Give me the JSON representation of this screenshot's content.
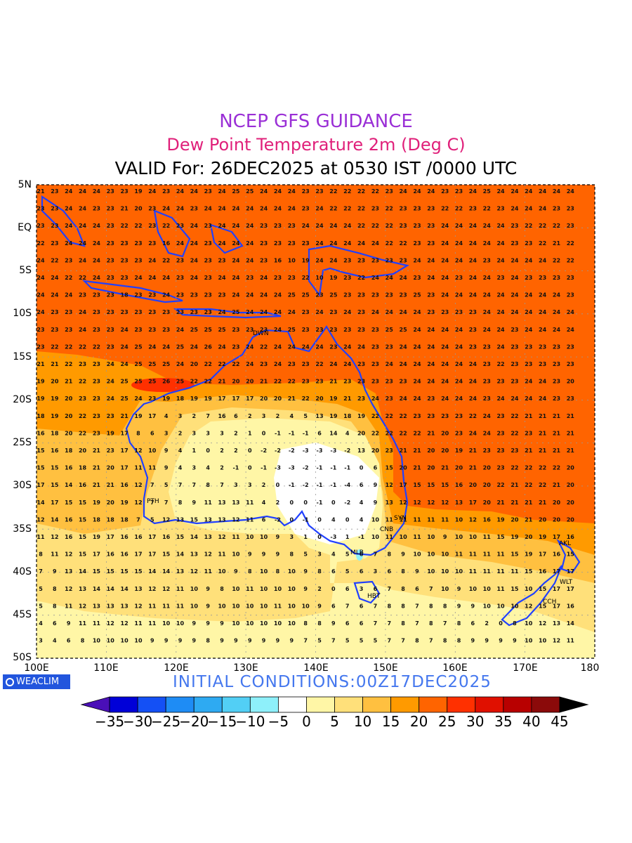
{
  "titles": {
    "line1": "NCEP GFS GUIDANCE",
    "line2": "Dew Point Temperature 2m (Deg C)",
    "line3": "VALID For: 26DEC2025 at 0530 IST /0000 UTC",
    "line1_color": "#9a2fd6",
    "line2_color": "#e0207a"
  },
  "axes": {
    "lat_labels": [
      "5N",
      "EQ",
      "5S",
      "10S",
      "15S",
      "20S",
      "25S",
      "30S",
      "35S",
      "40S",
      "45S",
      "50S"
    ],
    "lon_labels": [
      "100E",
      "110E",
      "120E",
      "130E",
      "140E",
      "150E",
      "160E",
      "170E",
      "180"
    ],
    "lat_range": [
      5,
      -50
    ],
    "lon_range": [
      100,
      180
    ]
  },
  "footer": {
    "initial_conditions": "INITIAL  CONDITIONS:00Z17DEC2025",
    "logo_text": "WEACLIM"
  },
  "colorbar": {
    "labels": [
      "-35",
      "-30",
      "-25",
      "-20",
      "-15",
      "-10",
      "-5",
      "0",
      "5",
      "10",
      "15",
      "20",
      "25",
      "30",
      "35",
      "40",
      "45"
    ],
    "colors": [
      "#4a0fb8",
      "#0000d8",
      "#1450f5",
      "#1e8cf5",
      "#2eaaf2",
      "#52cff5",
      "#8ef0fa",
      "#ffffff",
      "#fff6a6",
      "#ffe07a",
      "#ffc040",
      "#ff9a00",
      "#ff6400",
      "#ff3000",
      "#e01000",
      "#b80000",
      "#8b0a0a",
      "#000000"
    ]
  },
  "cities": [
    "PTH",
    "DWN",
    "SYN",
    "CNB",
    "MLB",
    "HBT",
    "AKL",
    "WLT",
    "CCH"
  ],
  "map_values": {
    "rows": [
      [
        21,
        23,
        24,
        24,
        24,
        23,
        23,
        19,
        24,
        23,
        24,
        24,
        23,
        24,
        25,
        25,
        24,
        24,
        24,
        23,
        23,
        22,
        22,
        22,
        22,
        23,
        24,
        24,
        24,
        23,
        23,
        24,
        25,
        24,
        24,
        24,
        24,
        24,
        24
      ],
      [
        23,
        23,
        24,
        24,
        23,
        23,
        21,
        20,
        23,
        24,
        24,
        23,
        24,
        24,
        24,
        24,
        24,
        24,
        24,
        23,
        24,
        22,
        22,
        22,
        23,
        22,
        23,
        23,
        23,
        22,
        22,
        23,
        22,
        23,
        24,
        24,
        24,
        23,
        23
      ],
      [
        23,
        23,
        24,
        24,
        24,
        23,
        22,
        22,
        23,
        22,
        23,
        24,
        23,
        24,
        24,
        24,
        23,
        23,
        23,
        24,
        24,
        24,
        24,
        22,
        22,
        22,
        23,
        23,
        23,
        24,
        24,
        24,
        24,
        24,
        23,
        22,
        22,
        22,
        23
      ],
      [
        22,
        23,
        24,
        24,
        24,
        23,
        23,
        23,
        23,
        16,
        24,
        24,
        23,
        24,
        24,
        24,
        23,
        23,
        23,
        23,
        24,
        24,
        24,
        24,
        24,
        22,
        22,
        23,
        23,
        24,
        24,
        24,
        24,
        24,
        23,
        23,
        22,
        21,
        22
      ],
      [
        24,
        22,
        23,
        24,
        24,
        23,
        23,
        23,
        24,
        22,
        23,
        24,
        23,
        23,
        24,
        24,
        23,
        16,
        10,
        19,
        24,
        24,
        23,
        23,
        23,
        23,
        23,
        24,
        24,
        24,
        24,
        24,
        23,
        24,
        24,
        24,
        24,
        22,
        22
      ],
      [
        24,
        24,
        22,
        22,
        24,
        23,
        23,
        24,
        24,
        24,
        23,
        24,
        23,
        24,
        24,
        23,
        24,
        23,
        23,
        22,
        10,
        19,
        23,
        22,
        24,
        24,
        24,
        23,
        24,
        24,
        23,
        24,
        24,
        23,
        24,
        23,
        23,
        23,
        23
      ],
      [
        24,
        24,
        24,
        23,
        23,
        23,
        18,
        23,
        23,
        24,
        23,
        23,
        23,
        23,
        24,
        24,
        24,
        24,
        25,
        25,
        23,
        25,
        23,
        23,
        23,
        23,
        23,
        25,
        23,
        24,
        24,
        24,
        24,
        24,
        24,
        24,
        24,
        24,
        23
      ],
      [
        24,
        23,
        23,
        24,
        23,
        23,
        23,
        23,
        23,
        23,
        23,
        23,
        23,
        24,
        25,
        24,
        24,
        24,
        24,
        23,
        24,
        23,
        24,
        23,
        24,
        24,
        24,
        24,
        23,
        23,
        23,
        23,
        24,
        24,
        24,
        24,
        24,
        24,
        24
      ],
      [
        23,
        23,
        23,
        24,
        23,
        23,
        24,
        23,
        23,
        23,
        24,
        25,
        25,
        25,
        23,
        23,
        23,
        24,
        25,
        23,
        23,
        23,
        23,
        23,
        23,
        25,
        25,
        24,
        24,
        24,
        24,
        23,
        24,
        24,
        23,
        24,
        24,
        24,
        24
      ],
      [
        23,
        22,
        22,
        22,
        22,
        23,
        24,
        25,
        24,
        24,
        25,
        24,
        26,
        24,
        23,
        24,
        22,
        24,
        24,
        24,
        24,
        23,
        24,
        24,
        23,
        23,
        24,
        24,
        24,
        24,
        24,
        23,
        23,
        24,
        23,
        23,
        23,
        23,
        23
      ],
      [
        21,
        21,
        22,
        23,
        23,
        24,
        24,
        25,
        25,
        25,
        24,
        20,
        22,
        22,
        22,
        24,
        23,
        24,
        23,
        23,
        22,
        24,
        24,
        23,
        23,
        24,
        24,
        24,
        24,
        24,
        24,
        24,
        23,
        22,
        23,
        23,
        23,
        23,
        23
      ],
      [
        19,
        20,
        21,
        22,
        23,
        24,
        25,
        25,
        25,
        26,
        25,
        22,
        22,
        21,
        20,
        20,
        21,
        22,
        22,
        23,
        23,
        21,
        23,
        23,
        23,
        23,
        23,
        24,
        24,
        24,
        24,
        24,
        23,
        23,
        23,
        24,
        24,
        23,
        20
      ],
      [
        19,
        19,
        20,
        23,
        23,
        24,
        25,
        24,
        23,
        19,
        18,
        19,
        19,
        17,
        17,
        17,
        20,
        20,
        21,
        22,
        20,
        19,
        21,
        23,
        24,
        23,
        24,
        24,
        23,
        24,
        24,
        24,
        23,
        24,
        24,
        24,
        24,
        23,
        23
      ],
      [
        18,
        19,
        20,
        22,
        23,
        23,
        21,
        19,
        17,
        4,
        3,
        2,
        7,
        16,
        6,
        2,
        3,
        2,
        4,
        5,
        13,
        19,
        18,
        19,
        22,
        22,
        22,
        23,
        23,
        23,
        23,
        22,
        24,
        23,
        22,
        21,
        21,
        21,
        21
      ],
      [
        16,
        18,
        20,
        22,
        23,
        19,
        17,
        8,
        6,
        3,
        2,
        3,
        3,
        3,
        2,
        1,
        0,
        -1,
        -1,
        -1,
        6,
        14,
        4,
        20,
        22,
        22,
        22,
        22,
        21,
        20,
        23,
        24,
        24,
        23,
        22,
        23,
        21,
        21,
        21
      ],
      [
        15,
        16,
        18,
        20,
        21,
        23,
        17,
        12,
        10,
        9,
        4,
        1,
        0,
        2,
        2,
        0,
        -2,
        -2,
        -2,
        -3,
        -3,
        -3,
        -2,
        13,
        20,
        23,
        21,
        21,
        20,
        20,
        19,
        21,
        23,
        23,
        23,
        21,
        21,
        21,
        21
      ],
      [
        15,
        15,
        16,
        18,
        21,
        20,
        17,
        11,
        11,
        9,
        4,
        3,
        4,
        2,
        -1,
        0,
        -1,
        -3,
        -3,
        -2,
        -1,
        -1,
        -1,
        0,
        6,
        15,
        20,
        21,
        20,
        21,
        20,
        21,
        20,
        23,
        22,
        22,
        22,
        22,
        20
      ],
      [
        17,
        15,
        14,
        16,
        21,
        21,
        16,
        12,
        7,
        5,
        7,
        7,
        8,
        7,
        3,
        3,
        2,
        0,
        -1,
        -2,
        -1,
        -1,
        -4,
        6,
        9,
        12,
        17,
        15,
        15,
        15,
        16,
        20,
        20,
        22,
        21,
        22,
        22,
        21,
        20
      ],
      [
        14,
        17,
        15,
        15,
        19,
        20,
        19,
        12,
        7,
        7,
        8,
        9,
        11,
        13,
        13,
        11,
        4,
        2,
        0,
        0,
        -1,
        0,
        -2,
        4,
        9,
        13,
        12,
        12,
        12,
        12,
        13,
        17,
        20,
        21,
        21,
        21,
        21,
        20,
        20
      ],
      [
        12,
        14,
        16,
        15,
        18,
        18,
        18,
        7,
        5,
        12,
        13,
        15,
        13,
        13,
        12,
        11,
        6,
        -2,
        0,
        -1,
        0,
        4,
        0,
        4,
        10,
        11,
        11,
        11,
        11,
        11,
        10,
        12,
        16,
        19,
        20,
        21,
        20,
        20,
        20
      ],
      [
        11,
        12,
        16,
        15,
        19,
        17,
        16,
        16,
        17,
        16,
        15,
        14,
        13,
        12,
        11,
        10,
        10,
        9,
        3,
        1,
        0,
        -3,
        1,
        -1,
        10,
        11,
        10,
        11,
        10,
        9,
        10,
        10,
        11,
        15,
        19,
        20,
        19,
        17,
        16
      ],
      [
        8,
        11,
        12,
        15,
        17,
        16,
        16,
        17,
        17,
        15,
        14,
        13,
        12,
        11,
        10,
        9,
        9,
        9,
        8,
        5,
        3,
        4,
        5,
        6,
        7,
        8,
        9,
        10,
        10,
        10,
        11,
        11,
        11,
        11,
        15,
        19,
        17,
        16,
        15
      ],
      [
        7,
        9,
        13,
        14,
        15,
        15,
        15,
        15,
        14,
        14,
        13,
        12,
        11,
        10,
        9,
        8,
        10,
        8,
        10,
        9,
        8,
        6,
        5,
        6,
        3,
        6,
        8,
        9,
        10,
        10,
        10,
        11,
        11,
        11,
        11,
        15,
        16,
        17,
        17
      ],
      [
        5,
        8,
        12,
        13,
        14,
        14,
        14,
        13,
        12,
        12,
        11,
        10,
        9,
        8,
        10,
        11,
        10,
        10,
        10,
        9,
        2,
        0,
        6,
        3,
        6,
        7,
        8,
        6,
        7,
        10,
        9,
        10,
        10,
        11,
        15,
        10,
        15,
        17,
        17
      ],
      [
        5,
        8,
        11,
        12,
        13,
        13,
        13,
        12,
        11,
        11,
        11,
        10,
        9,
        10,
        10,
        10,
        10,
        11,
        10,
        10,
        9,
        6,
        7,
        6,
        7,
        8,
        8,
        7,
        8,
        8,
        9,
        9,
        10,
        10,
        10,
        12,
        15,
        17,
        16
      ],
      [
        4,
        6,
        9,
        11,
        11,
        12,
        12,
        11,
        11,
        10,
        10,
        9,
        9,
        9,
        10,
        10,
        10,
        10,
        10,
        8,
        8,
        9,
        6,
        6,
        7,
        7,
        8,
        7,
        8,
        7,
        8,
        6,
        2,
        0,
        8,
        10,
        12,
        13,
        14
      ],
      [
        3,
        4,
        6,
        8,
        10,
        10,
        10,
        10,
        9,
        9,
        9,
        9,
        8,
        9,
        9,
        9,
        9,
        9,
        9,
        7,
        5,
        7,
        5,
        5,
        5,
        7,
        7,
        8,
        7,
        8,
        8,
        9,
        9,
        9,
        9,
        10,
        10,
        12,
        11
      ]
    ]
  }
}
